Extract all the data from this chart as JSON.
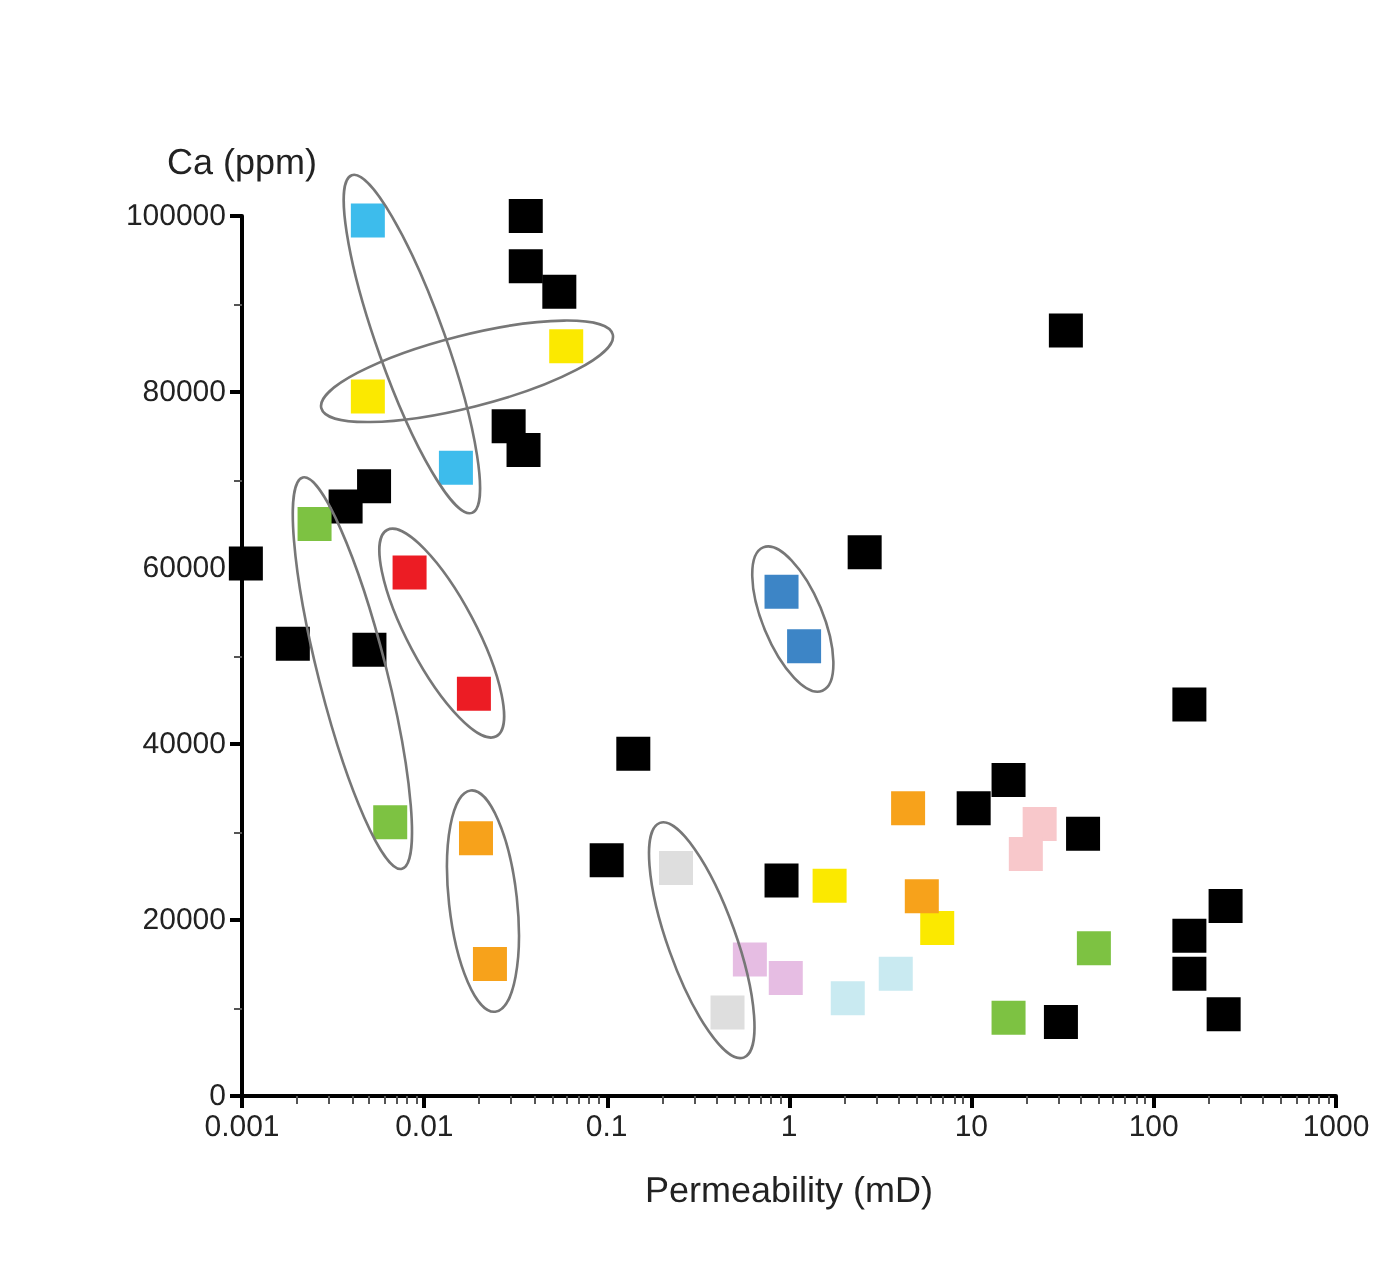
{
  "chart_data": {
    "type": "scatter",
    "xlabel": "Permeability (mD)",
    "ylabel": "Ca (ppm)",
    "log": "x",
    "marker": "square",
    "xlim": [
      0.001,
      1000
    ],
    "xticks": [
      0.001,
      0.01,
      0.1,
      1,
      10,
      100,
      1000
    ],
    "ylim": [
      0,
      100000
    ],
    "yticks": [
      0,
      20000,
      40000,
      60000,
      80000,
      100000
    ],
    "series": [
      {
        "color": "#000000",
        "x": [
          0.036,
          0.036,
          0.055,
          0.029,
          0.035,
          0.0053,
          0.0037,
          0.00105,
          0.0019,
          0.005,
          0.14,
          0.1,
          0.91,
          2.6,
          33,
          10.3,
          16,
          41,
          31,
          157,
          248,
          157,
          157,
          242
        ],
        "values": [
          100000,
          94300,
          91400,
          76100,
          73400,
          69300,
          67000,
          60500,
          51400,
          50700,
          38900,
          26800,
          24500,
          61800,
          87000,
          32700,
          35900,
          29800,
          8400,
          44500,
          21600,
          18200,
          13900,
          9300
        ]
      },
      {
        "color": "#3dbcec",
        "x": [
          0.0049,
          0.0149
        ],
        "values": [
          99500,
          71400
        ]
      },
      {
        "color": "#fbe900",
        "x": [
          0.06,
          0.0049,
          1.67,
          6.5
        ],
        "values": [
          85200,
          79500,
          23900,
          19100
        ]
      },
      {
        "color": "#7dc242",
        "x": [
          0.0025,
          0.0065,
          47,
          16
        ],
        "values": [
          65000,
          31100,
          16800,
          8900
        ]
      },
      {
        "color": "#ec1c24",
        "x": [
          0.0083,
          0.0187
        ],
        "values": [
          59500,
          45700
        ]
      },
      {
        "color": "#f7a21b",
        "x": [
          0.0192,
          0.0229,
          4.5,
          5.35
        ],
        "values": [
          29300,
          15000,
          32700,
          22700
        ]
      },
      {
        "color": "#3d85c6",
        "x": [
          0.91,
          1.21
        ],
        "values": [
          57300,
          51100
        ]
      },
      {
        "color": "#dedede",
        "x": [
          0.24,
          0.46
        ],
        "values": [
          25900,
          9500
        ]
      },
      {
        "color": "#e6bde3",
        "x": [
          0.61,
          0.96
        ],
        "values": [
          15500,
          13400
        ]
      },
      {
        "color": "#c9eaf1",
        "x": [
          2.1,
          3.85
        ],
        "values": [
          11100,
          13900
        ]
      },
      {
        "color": "#f8c8cb",
        "x": [
          23.7,
          19.9
        ],
        "values": [
          30900,
          27500
        ]
      }
    ]
  }
}
